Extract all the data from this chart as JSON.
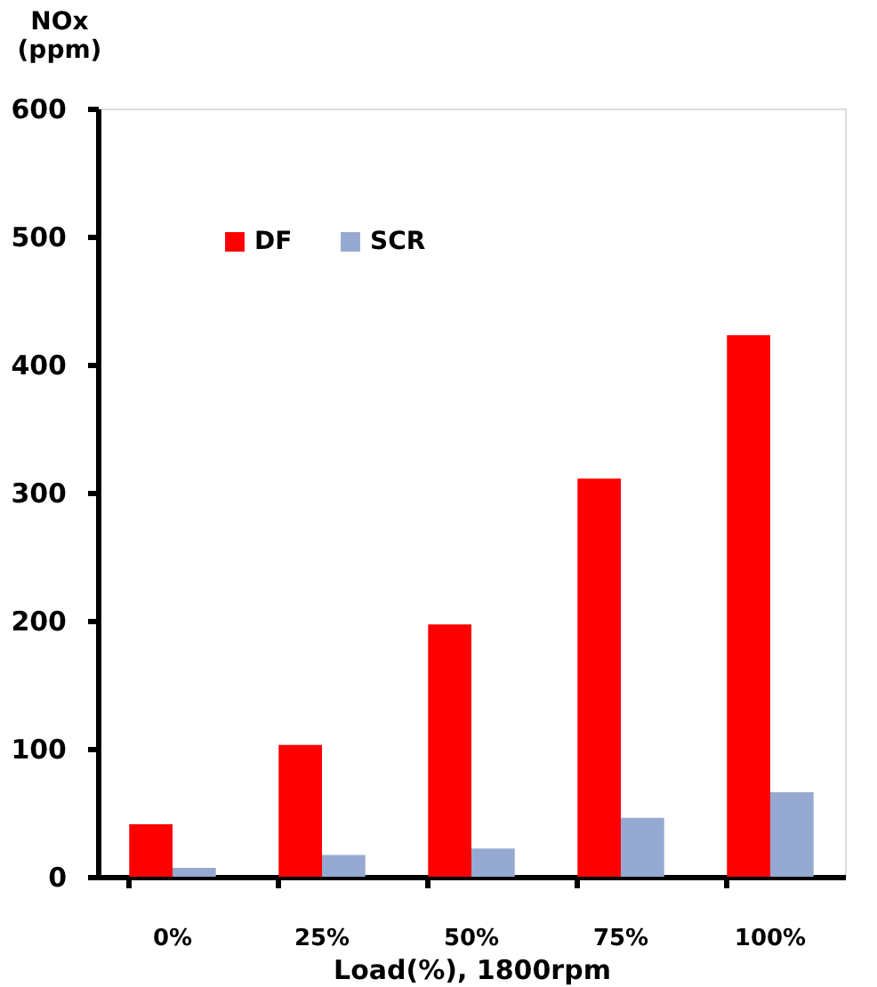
{
  "chart_data": {
    "type": "bar",
    "xlabel": "Load(%), 1800rpm",
    "ylabel": "NOx (ppm)",
    "categories": [
      "0%",
      "25%",
      "50%",
      "75%",
      "100%"
    ],
    "series": [
      {
        "name": "DF",
        "color": "#ff0000",
        "values": [
          41,
          103,
          197,
          311,
          423
        ]
      },
      {
        "name": "SCR",
        "color": "#95a9d1",
        "values": [
          7,
          17,
          22,
          46,
          66
        ]
      }
    ],
    "ylim": [
      0,
      600
    ],
    "yticks": [
      0,
      100,
      200,
      300,
      400,
      500,
      600
    ],
    "grid": false,
    "legend": "top left"
  }
}
